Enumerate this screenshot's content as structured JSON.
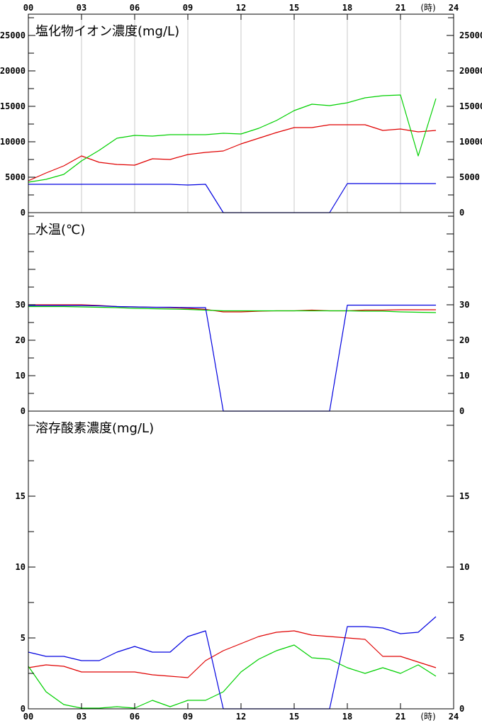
{
  "x_axis": {
    "top_ticks": [
      "00",
      "03",
      "06",
      "09",
      "12",
      "15",
      "18",
      "21",
      "24"
    ],
    "bottom_ticks": [
      "00",
      "03",
      "06",
      "09",
      "12",
      "15",
      "18",
      "21",
      "24"
    ],
    "unit": "(時)",
    "range": [
      0,
      24
    ]
  },
  "series_colors": {
    "red": "#e00000",
    "green": "#00d000",
    "blue": "#0000e0"
  },
  "chart_data": [
    {
      "type": "line",
      "title": "塩化物イオン濃度(mg/L)",
      "ylim": [
        0,
        28000
      ],
      "yticks": [
        0,
        5000,
        10000,
        15000,
        20000,
        25000
      ],
      "ytick_labels": [
        "0",
        "5000",
        "10000",
        "15000",
        "20000",
        "25000"
      ],
      "grid": "vertical",
      "x": [
        0,
        1,
        2,
        3,
        4,
        5,
        6,
        7,
        8,
        9,
        10,
        11,
        12,
        13,
        14,
        15,
        16,
        17,
        18,
        19,
        20,
        21,
        22,
        23
      ],
      "series": [
        {
          "color": "red",
          "values": [
            4500,
            5600,
            6600,
            8000,
            7100,
            6800,
            6700,
            7600,
            7500,
            8200,
            8500,
            8700,
            9700,
            10500,
            11300,
            12000,
            12000,
            12400,
            12400,
            12400,
            11600,
            11800,
            11400,
            11600
          ]
        },
        {
          "color": "green",
          "values": [
            4300,
            4700,
            5400,
            7300,
            8800,
            10500,
            10900,
            10800,
            11000,
            11000,
            11000,
            11200,
            11100,
            11900,
            13000,
            14400,
            15300,
            15100,
            15500,
            16200,
            16500,
            16600,
            8000,
            16100
          ]
        },
        {
          "color": "blue",
          "values": [
            4000,
            4000,
            4000,
            4000,
            4000,
            4000,
            4000,
            4000,
            4000,
            3900,
            4000,
            0,
            0,
            0,
            0,
            0,
            0,
            0,
            4100,
            4100,
            4100,
            4100,
            4100,
            4100
          ]
        }
      ]
    },
    {
      "type": "line",
      "title": "水温(℃)",
      "ylim": [
        0,
        56
      ],
      "yticks": [
        0,
        10,
        20,
        30
      ],
      "ytick_labels": [
        "0",
        "10",
        "20",
        "30"
      ],
      "grid": "none",
      "x": [
        0,
        1,
        2,
        3,
        4,
        5,
        6,
        7,
        8,
        9,
        10,
        11,
        12,
        13,
        14,
        15,
        16,
        17,
        18,
        19,
        20,
        21,
        22,
        23
      ],
      "series": [
        {
          "color": "red",
          "values": [
            30.0,
            30.0,
            30.0,
            30.0,
            29.8,
            29.5,
            29.4,
            29.3,
            29.2,
            29.0,
            28.7,
            28.0,
            28.0,
            28.2,
            28.3,
            28.3,
            28.5,
            28.3,
            28.3,
            28.5,
            28.5,
            28.6,
            28.6,
            28.6
          ]
        },
        {
          "color": "green",
          "values": [
            29.5,
            29.5,
            29.5,
            29.4,
            29.3,
            29.2,
            29.0,
            28.9,
            28.8,
            28.7,
            28.5,
            28.3,
            28.3,
            28.3,
            28.3,
            28.3,
            28.3,
            28.3,
            28.3,
            28.2,
            28.2,
            28.0,
            27.9,
            27.8
          ]
        },
        {
          "color": "blue",
          "values": [
            29.8,
            29.8,
            29.8,
            29.8,
            29.7,
            29.5,
            29.4,
            29.3,
            29.3,
            29.2,
            29.2,
            0,
            0,
            0,
            0,
            0,
            0,
            0,
            29.9,
            29.9,
            29.9,
            29.9,
            29.9,
            29.9
          ]
        }
      ]
    },
    {
      "type": "line",
      "title": "溶存酸素濃度(mg/L)",
      "ylim": [
        0,
        21
      ],
      "yticks": [
        0,
        5,
        10,
        15
      ],
      "ytick_labels": [
        "0",
        "5",
        "10",
        "15"
      ],
      "grid": "none",
      "x": [
        0,
        1,
        2,
        3,
        4,
        5,
        6,
        7,
        8,
        9,
        10,
        11,
        12,
        13,
        14,
        15,
        16,
        17,
        18,
        19,
        20,
        21,
        22,
        23
      ],
      "series": [
        {
          "color": "red",
          "values": [
            2.9,
            3.1,
            3.0,
            2.6,
            2.6,
            2.6,
            2.6,
            2.4,
            2.3,
            2.2,
            3.4,
            4.1,
            4.6,
            5.1,
            5.4,
            5.5,
            5.2,
            5.1,
            5.0,
            4.9,
            3.7,
            3.7,
            3.3,
            2.9
          ]
        },
        {
          "color": "green",
          "values": [
            3.0,
            1.2,
            0.3,
            0.05,
            0.05,
            0.15,
            0.05,
            0.6,
            0.15,
            0.6,
            0.6,
            1.2,
            2.6,
            3.5,
            4.1,
            4.5,
            3.6,
            3.5,
            2.9,
            2.5,
            2.9,
            2.5,
            3.1,
            2.3
          ]
        },
        {
          "color": "blue",
          "values": [
            4.0,
            3.7,
            3.7,
            3.4,
            3.4,
            4.0,
            4.4,
            4.0,
            4.0,
            5.1,
            5.5,
            0,
            0,
            0,
            0,
            0,
            0,
            0,
            5.8,
            5.8,
            5.7,
            5.3,
            5.4,
            6.5
          ]
        }
      ]
    }
  ]
}
